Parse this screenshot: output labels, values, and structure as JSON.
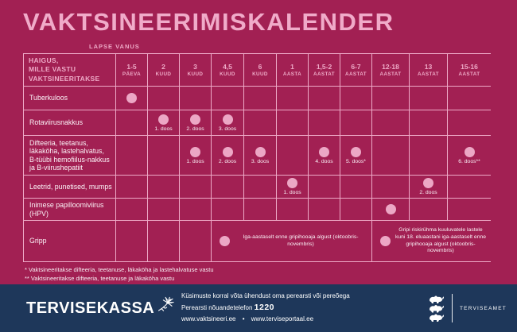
{
  "title": "VAKTSINEERIMISKALENDER",
  "age_axis_label": "LAPSE VANUS",
  "colors": {
    "background": "#a22053",
    "accent_pink": "#eeaac7",
    "dot_pink": "#eca7c5",
    "footer_navy": "#1e375a",
    "text_white": "#fbf2f7"
  },
  "table": {
    "corner_header_lines": [
      "HAIGUS,",
      "MILLE VASTU",
      "VAKTSINEERITAKSE"
    ],
    "age_columns": [
      {
        "value": "1-5",
        "unit": "PÄEVA"
      },
      {
        "value": "2",
        "unit": "KUUD"
      },
      {
        "value": "3",
        "unit": "KUUD"
      },
      {
        "value": "4,5",
        "unit": "KUUD"
      },
      {
        "value": "6",
        "unit": "KUUD"
      },
      {
        "value": "1",
        "unit": "AASTA"
      },
      {
        "value": "1,5-2",
        "unit": "AASTAT"
      },
      {
        "value": "6-7",
        "unit": "AASTAT"
      },
      {
        "value": "12-18",
        "unit": "AASTAT"
      },
      {
        "value": "13",
        "unit": "AASTAT"
      },
      {
        "value": "15-16",
        "unit": "AASTAT"
      }
    ],
    "rows": [
      {
        "disease": "Tuberkuloos",
        "marks": [
          {
            "col": 0,
            "span": 1,
            "dot": true,
            "label": ""
          }
        ]
      },
      {
        "disease": "Rotaviirusnakkus",
        "marks": [
          {
            "col": 1,
            "span": 1,
            "dot": true,
            "label": "1. doos"
          },
          {
            "col": 2,
            "span": 1,
            "dot": true,
            "label": "2. doos"
          },
          {
            "col": 3,
            "span": 1,
            "dot": true,
            "label": "3. doos"
          }
        ]
      },
      {
        "disease": "Difteeria, teetanus, läkaköha, lastehalvatus, B-tüübi hemofiilus-nakkus ja B-viirushepatiit",
        "marks": [
          {
            "col": 2,
            "span": 1,
            "dot": true,
            "label": "1. doos"
          },
          {
            "col": 3,
            "span": 1,
            "dot": true,
            "label": "2. doos"
          },
          {
            "col": 4,
            "span": 1,
            "dot": true,
            "label": "3. doos"
          },
          {
            "col": 6,
            "span": 1,
            "dot": true,
            "label": "4. doos"
          },
          {
            "col": 7,
            "span": 1,
            "dot": true,
            "label": "5. doos*"
          },
          {
            "col": 10,
            "span": 1,
            "dot": true,
            "label": "6. doos**"
          }
        ]
      },
      {
        "disease": "Leetrid, punetised, mumps",
        "marks": [
          {
            "col": 5,
            "span": 1,
            "dot": true,
            "label": "1. doos"
          },
          {
            "col": 9,
            "span": 1,
            "dot": true,
            "label": "2. doos"
          }
        ]
      },
      {
        "disease": "Inimese papilloomiviirus (HPV)",
        "marks": [
          {
            "col": 8,
            "span": 1,
            "dot": true,
            "label": ""
          }
        ]
      },
      {
        "disease": "Gripp",
        "marks": [
          {
            "col": 3,
            "span": 5,
            "dot": true,
            "note": "Iga-aastaselt enne gripihooaja algust (oktoobris-novembris)"
          },
          {
            "col": 8,
            "span": 3,
            "dot": true,
            "note": "Gripi riskirühma kuuluvatele lastele kuni 18. eluaastani iga-aastaselt enne gripihooaja algust (oktoobris-novembris)"
          }
        ]
      }
    ]
  },
  "footnotes": [
    "* Vaktsineeritakse difteeria, teetanuse, läkaköha ja lastehalvatuse vastu",
    "** Vaktsineeritakse difteeria, teetanuse ja läkaköha vastu"
  ],
  "footer": {
    "brand": "TERVISEKASSA",
    "contact_line1": "Küsimuste korral võta ühendust oma perearsti või pereõega",
    "phone_label": "Perearsti nõuandetelefon",
    "phone_number": "1220",
    "url1": "www.vaktsineeri.ee",
    "url_separator": "•",
    "url2": "www.terviseportaal.ee",
    "agency": "TERVISEAMET"
  }
}
